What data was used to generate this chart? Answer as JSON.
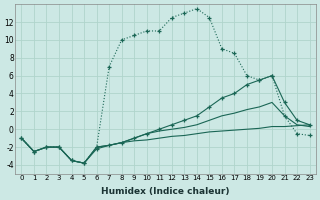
{
  "xlabel": "Humidex (Indice chaleur)",
  "bg_color": "#cce8e4",
  "grid_color": "#b0d4cc",
  "line_color": "#1a6655",
  "xlim": [
    -0.5,
    23.5
  ],
  "ylim": [
    -5,
    14
  ],
  "xticks": [
    0,
    1,
    2,
    3,
    4,
    5,
    6,
    7,
    8,
    9,
    10,
    11,
    12,
    13,
    14,
    15,
    16,
    17,
    18,
    19,
    20,
    21,
    22,
    23
  ],
  "yticks": [
    -4,
    -2,
    0,
    2,
    4,
    6,
    8,
    10,
    12
  ],
  "curve_dotted_x": [
    0,
    1,
    2,
    3,
    4,
    5,
    6,
    7,
    8,
    9,
    10,
    11,
    12,
    13,
    14,
    15,
    16,
    17,
    18,
    19,
    20,
    21,
    22,
    23
  ],
  "curve_dotted_y": [
    -1,
    -2.5,
    -2,
    -2,
    -3.5,
    -3.8,
    -2,
    7,
    10,
    10.5,
    11,
    11,
    12.5,
    13,
    13.5,
    12.5,
    9,
    8.5,
    6,
    5.5,
    6,
    1.5,
    -0.5,
    -0.7
  ],
  "curve_solid1_x": [
    0,
    1,
    2,
    3,
    4,
    5,
    6,
    7,
    8,
    9,
    10,
    11,
    12,
    13,
    14,
    15,
    16,
    17,
    18,
    19,
    20,
    21,
    22,
    23
  ],
  "curve_solid1_y": [
    -1,
    -2.5,
    -2,
    -2,
    -3.5,
    -3.8,
    -2.2,
    -1.8,
    -1.5,
    -1,
    -0.5,
    0,
    0.5,
    1,
    1.5,
    2.5,
    3.5,
    4,
    5,
    5.5,
    6,
    3,
    1,
    0.5
  ],
  "curve_solid2_x": [
    0,
    1,
    2,
    3,
    4,
    5,
    6,
    7,
    8,
    9,
    10,
    11,
    12,
    13,
    14,
    15,
    16,
    17,
    18,
    19,
    20,
    21,
    22,
    23
  ],
  "curve_solid2_y": [
    -1,
    -2.5,
    -2,
    -2,
    -3.5,
    -3.8,
    -2,
    -1.8,
    -1.5,
    -1,
    -0.5,
    -0.2,
    0,
    0.2,
    0.5,
    1,
    1.5,
    1.8,
    2.2,
    2.5,
    3,
    1.5,
    0.5,
    0.3
  ],
  "curve_flat_x": [
    0,
    1,
    2,
    3,
    4,
    5,
    6,
    7,
    8,
    9,
    10,
    11,
    12,
    13,
    14,
    15,
    16,
    17,
    18,
    19,
    20,
    21,
    22,
    23
  ],
  "curve_flat_y": [
    -1,
    -2.5,
    -2,
    -2,
    -3.5,
    -3.8,
    -2,
    -1.8,
    -1.5,
    -1.3,
    -1.2,
    -1,
    -0.8,
    -0.7,
    -0.5,
    -0.3,
    -0.2,
    -0.1,
    0,
    0.1,
    0.3,
    0.3,
    0.4,
    0.5
  ]
}
